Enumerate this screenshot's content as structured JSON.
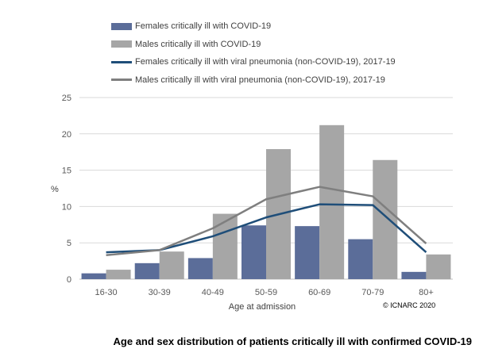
{
  "chart_data": {
    "type": "bar",
    "title": "Age and sex distribution of patients critically ill with confirmed COVID-19",
    "xlabel": "Age at admission",
    "ylabel": "%",
    "ylim": [
      0,
      25
    ],
    "yticks": [
      0,
      5,
      10,
      15,
      20,
      25
    ],
    "grid": true,
    "legend_position": "top-left",
    "categories": [
      "16-30",
      "30-39",
      "40-49",
      "50-59",
      "60-69",
      "70-79",
      "80+"
    ],
    "series": [
      {
        "name": "Females critically ill with COVID-19",
        "kind": "bar",
        "color": "#5b6d99",
        "values": [
          0.8,
          2.2,
          2.9,
          7.4,
          7.3,
          5.5,
          1.0
        ]
      },
      {
        "name": "Males critically ill with COVID-19",
        "kind": "bar",
        "color": "#a6a6a6",
        "values": [
          1.3,
          3.8,
          9.0,
          17.9,
          21.2,
          16.4,
          3.4
        ]
      },
      {
        "name": "Females critically ill with viral pneumonia (non-COVID-19), 2017-19",
        "kind": "line",
        "color": "#1f4e79",
        "values": [
          3.7,
          4.0,
          5.9,
          8.5,
          10.3,
          10.2,
          3.7
        ]
      },
      {
        "name": "Males critically ill with viral pneumonia (non-COVID-19), 2017-19",
        "kind": "line",
        "color": "#7f7f7f",
        "values": [
          3.3,
          4.0,
          7.0,
          11.0,
          12.7,
          11.4,
          4.9
        ]
      }
    ],
    "annotation": "© ICNARC 2020"
  }
}
